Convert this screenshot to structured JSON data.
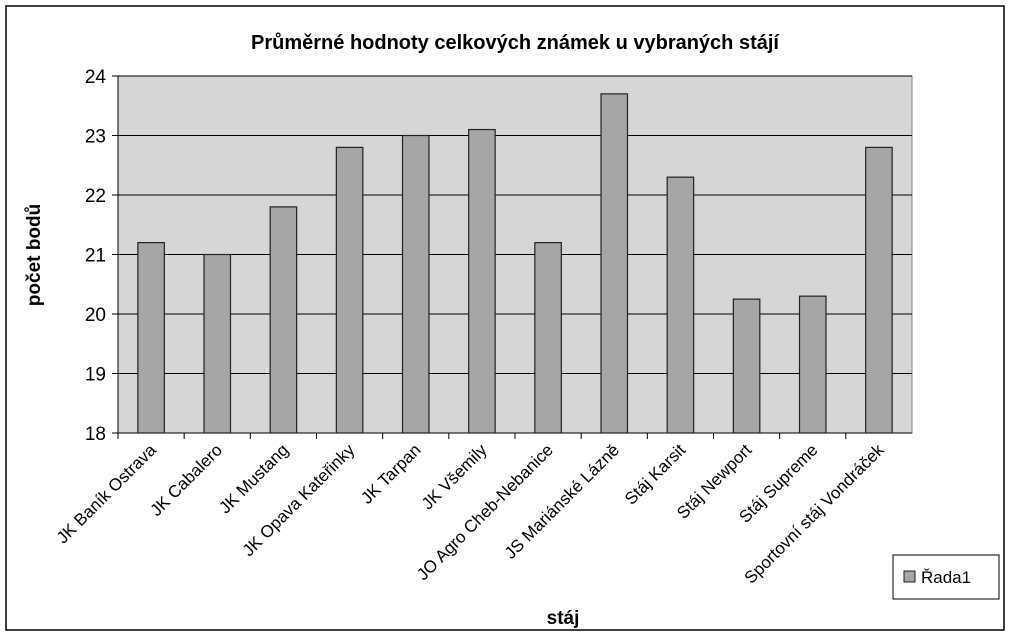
{
  "chart_data": {
    "type": "bar",
    "title": "Průměrné hodnoty celkových známek u vybraných stájí",
    "x_label": "stáj",
    "y_label": "počet bodů",
    "categories": [
      "JK Baník Ostrava",
      "JK Cabalero",
      "JK Mustang",
      "JK Opava Kateřinky",
      "JK Tarpan",
      "JK Všemily",
      "JO Agro Cheb-Nebanice",
      "JS Mariánské Lázně",
      "Stáj Karsit",
      "Stáj Newport",
      "Stáj Supreme",
      "Sportovní stáj Vondráček"
    ],
    "series": [
      {
        "name": "Řada1",
        "color": "#a6a6a6",
        "values": [
          21.2,
          21.0,
          21.8,
          22.8,
          23.0,
          23.1,
          21.2,
          23.7,
          22.3,
          20.25,
          20.3,
          22.8
        ]
      }
    ],
    "ylim": [
      18,
      24
    ],
    "yticks": [
      18,
      19,
      20,
      21,
      22,
      23,
      24
    ],
    "grid": true,
    "legend": "right"
  }
}
